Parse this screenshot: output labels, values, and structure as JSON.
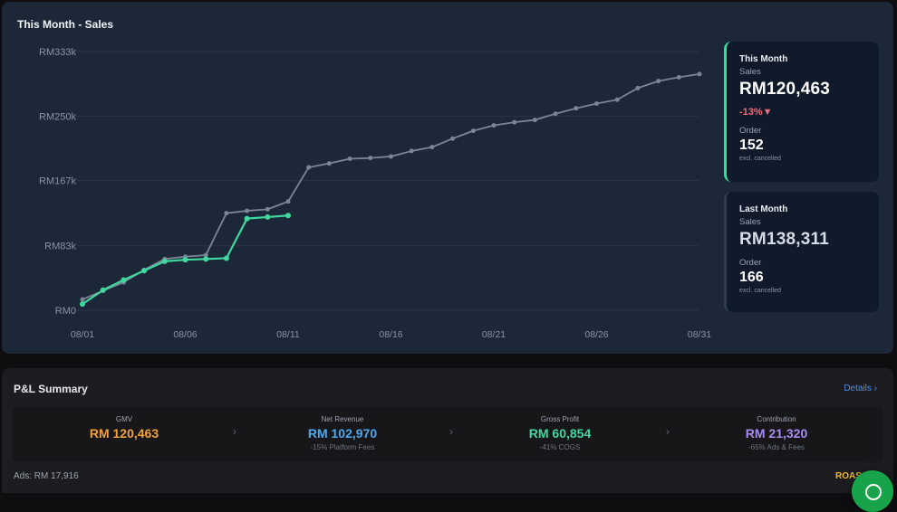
{
  "sales_panel": {
    "title": "This Month - Sales"
  },
  "this_month": {
    "title": "This Month",
    "sales_label": "Sales",
    "sales_value": "RM120,463",
    "change": "-13%▼",
    "order_label": "Order",
    "order_value": "152",
    "note": "excl. cancelled"
  },
  "last_month": {
    "title": "Last Month",
    "sales_label": "Sales",
    "sales_value": "RM138,311",
    "order_label": "Order",
    "order_value": "166",
    "note": "excl. cancelled"
  },
  "chart_data": {
    "type": "line",
    "ylim": [
      0,
      333000
    ],
    "y_ticks": [
      {
        "value": 0,
        "label": "RM0"
      },
      {
        "value": 83000,
        "label": "RM83k"
      },
      {
        "value": 167000,
        "label": "RM167k"
      },
      {
        "value": 250000,
        "label": "RM250k"
      },
      {
        "value": 333000,
        "label": "RM333k"
      }
    ],
    "x_ticks": [
      {
        "day": 1,
        "label": "08/01"
      },
      {
        "day": 6,
        "label": "08/06"
      },
      {
        "day": 11,
        "label": "08/11"
      },
      {
        "day": 16,
        "label": "08/16"
      },
      {
        "day": 21,
        "label": "08/21"
      },
      {
        "day": 26,
        "label": "08/26"
      },
      {
        "day": 31,
        "label": "08/31"
      }
    ],
    "grid": true,
    "series": [
      {
        "key": "last_month",
        "color": "#7c8595",
        "days": [
          1,
          2,
          3,
          4,
          5,
          6,
          7,
          8,
          9,
          10,
          11,
          12,
          13,
          14,
          15,
          16,
          17,
          18,
          19,
          20,
          21,
          22,
          23,
          24,
          25,
          26,
          27,
          28,
          29,
          30,
          31
        ],
        "values": [
          14000,
          25000,
          36000,
          52000,
          66000,
          69000,
          71000,
          125000,
          128000,
          130000,
          140000,
          184000,
          189000,
          195000,
          196000,
          198000,
          205000,
          210000,
          221000,
          231000,
          238000,
          242000,
          245000,
          253000,
          260000,
          266000,
          271000,
          286000,
          295000,
          300000,
          304000
        ]
      },
      {
        "key": "this_month",
        "color": "#3fd9a0",
        "days": [
          1,
          2,
          3,
          4,
          5,
          6,
          7,
          8,
          9,
          10,
          11
        ],
        "values": [
          8000,
          26000,
          39000,
          51000,
          63000,
          65000,
          66000,
          67000,
          118000,
          120000,
          122000
        ]
      }
    ]
  },
  "pl_summary": {
    "title": "P&L Summary",
    "details_label": "Details ›",
    "separator": "›",
    "metrics": [
      {
        "label": "GMV",
        "value": "RM 120,463",
        "sub": "",
        "color": "#f2a03a"
      },
      {
        "label": "Net Revenue",
        "value": "RM 102,970",
        "sub": "-15% Platform Fees",
        "color": "#4aa8f0"
      },
      {
        "label": "Gross Profit",
        "value": "RM 60,854",
        "sub": "-41% COGS",
        "color": "#3fd9a0"
      },
      {
        "label": "Contribution",
        "value": "RM 21,320",
        "sub": "-65% Ads & Fees",
        "color": "#a98bf5"
      }
    ],
    "ads": "Ads: RM 17,916",
    "roas": "ROAS"
  }
}
